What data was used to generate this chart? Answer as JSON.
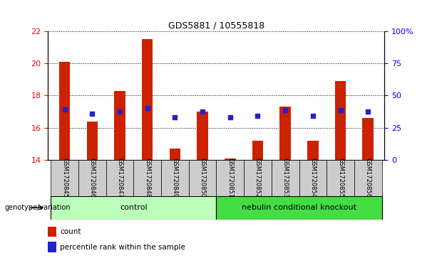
{
  "title": "GDS5881 / 10555818",
  "samples": [
    "GSM1720845",
    "GSM1720846",
    "GSM1720847",
    "GSM1720848",
    "GSM1720849",
    "GSM1720850",
    "GSM1720851",
    "GSM1720852",
    "GSM1720853",
    "GSM1720854",
    "GSM1720855",
    "GSM1720856"
  ],
  "count_values": [
    20.1,
    16.4,
    18.3,
    21.5,
    14.7,
    17.0,
    14.1,
    15.2,
    17.3,
    15.2,
    18.9,
    16.6
  ],
  "percentile_values_left": [
    17.15,
    16.85,
    17.0,
    17.2,
    16.65,
    17.0,
    16.65,
    16.75,
    17.1,
    16.75,
    17.1,
    17.0
  ],
  "ylim_left": [
    14,
    22
  ],
  "ylim_right": [
    0,
    100
  ],
  "yticks_left": [
    14,
    16,
    18,
    20,
    22
  ],
  "yticks_right": [
    0,
    25,
    50,
    75,
    100
  ],
  "ytick_labels_right": [
    "0",
    "25",
    "50",
    "75",
    "100%"
  ],
  "bar_color": "#cc2200",
  "dot_color": "#2222cc",
  "control_label": "control",
  "knockout_label": "nebulin conditional knockout",
  "genotype_label": "genotype/variation",
  "control_color": "#bbffbb",
  "knockout_color": "#44dd44",
  "legend_count_label": "count",
  "legend_percentile_label": "percentile rank within the sample",
  "bar_bottom": 14,
  "xticklabel_bg": "#cccccc",
  "bar_width": 0.4,
  "fig_bg": "#ffffff"
}
